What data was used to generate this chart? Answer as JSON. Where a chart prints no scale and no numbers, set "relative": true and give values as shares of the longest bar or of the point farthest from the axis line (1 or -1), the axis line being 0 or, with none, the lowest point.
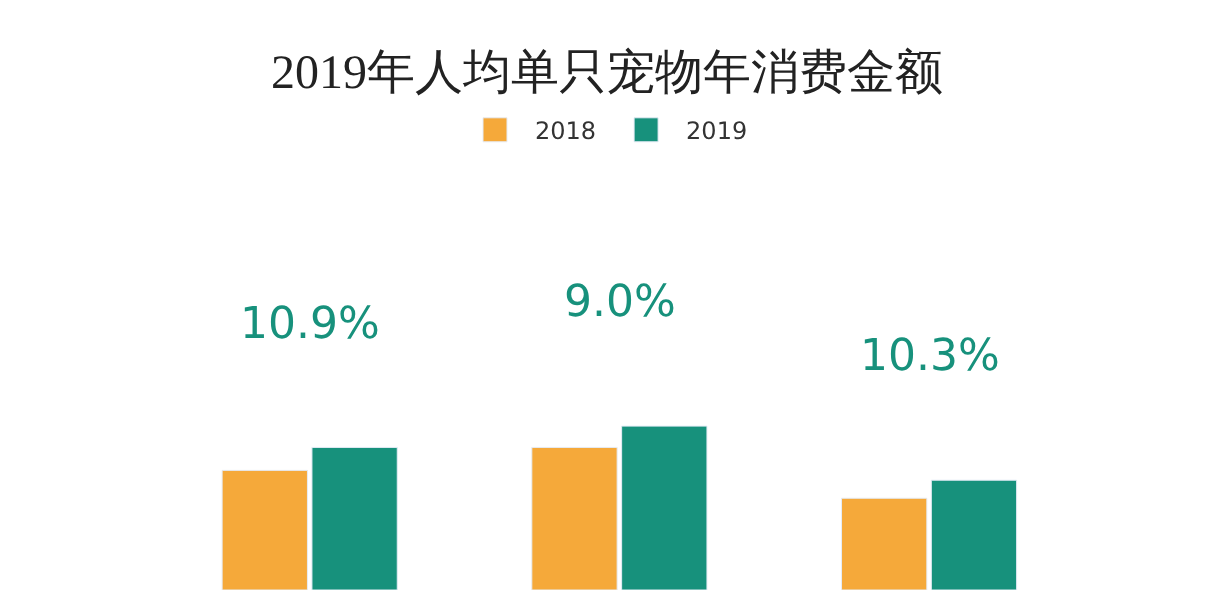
{
  "chart_data": {
    "type": "bar",
    "title": "2019年人均单只宠物年消费金额",
    "relative": true,
    "legend": "top",
    "categories": [
      null,
      null,
      null
    ],
    "series": [
      {
        "name": "2018",
        "color": "#f5a93a",
        "values": [
          0.73,
          0.87,
          0.56
        ]
      },
      {
        "name": "2019",
        "color": "#17917c",
        "values": [
          0.87,
          1,
          0.67
        ]
      }
    ],
    "annotations": [
      "10.9%",
      "9.0%",
      "10.3%"
    ]
  }
}
